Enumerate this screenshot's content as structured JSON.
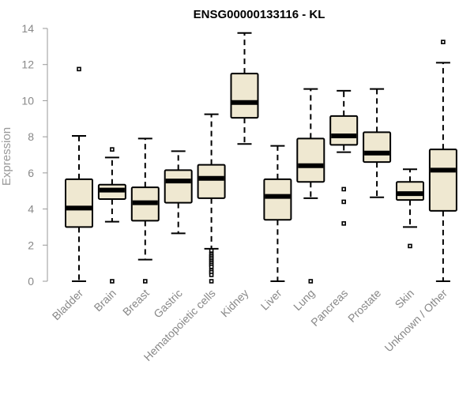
{
  "chart_data": {
    "type": "boxplot",
    "title": "ENSG00000133116 - KL",
    "xlabel": "",
    "ylabel": "Expression",
    "ylim": [
      0,
      14
    ],
    "yticks": [
      0,
      2,
      4,
      6,
      8,
      10,
      12,
      14
    ],
    "box_fill": "#efe8d1",
    "categories": [
      "Bladder",
      "Brain",
      "Breast",
      "Gastric",
      "Hematopoietic cells",
      "Kidney",
      "Liver",
      "Lung",
      "Pancreas",
      "Prostate",
      "Skin",
      "Unknown / Other"
    ],
    "boxes": [
      {
        "name": "Bladder",
        "whisker_low": 0.0,
        "q1": 3.0,
        "median": 4.05,
        "q3": 5.65,
        "whisker_high": 8.05,
        "outliers": [
          11.75
        ]
      },
      {
        "name": "Brain",
        "whisker_low": 3.3,
        "q1": 4.55,
        "median": 5.05,
        "q3": 5.35,
        "whisker_high": 6.85,
        "outliers": [
          7.3,
          0.0
        ]
      },
      {
        "name": "Breast",
        "whisker_low": 1.2,
        "q1": 3.35,
        "median": 4.35,
        "q3": 5.2,
        "whisker_high": 7.9,
        "outliers": [
          0.0
        ]
      },
      {
        "name": "Gastric",
        "whisker_low": 2.65,
        "q1": 4.35,
        "median": 5.55,
        "q3": 6.15,
        "whisker_high": 7.2,
        "outliers": []
      },
      {
        "name": "Hematopoietic cells",
        "whisker_low": 1.8,
        "q1": 4.6,
        "median": 5.7,
        "q3": 6.45,
        "whisker_high": 9.25,
        "outliers": [
          1.7,
          1.5,
          1.4,
          1.3,
          1.2,
          1.1,
          1.0,
          0.9,
          0.8,
          0.6,
          0.5,
          0.35,
          0.0
        ]
      },
      {
        "name": "Kidney",
        "whisker_low": 7.6,
        "q1": 9.05,
        "median": 9.9,
        "q3": 11.5,
        "whisker_high": 13.75,
        "outliers": []
      },
      {
        "name": "Liver",
        "whisker_low": 0.0,
        "q1": 3.4,
        "median": 4.7,
        "q3": 5.65,
        "whisker_high": 7.5,
        "outliers": []
      },
      {
        "name": "Lung",
        "whisker_low": 4.6,
        "q1": 5.5,
        "median": 6.4,
        "q3": 7.9,
        "whisker_high": 10.65,
        "outliers": [
          0.0
        ]
      },
      {
        "name": "Pancreas",
        "whisker_low": 7.15,
        "q1": 7.55,
        "median": 8.05,
        "q3": 9.15,
        "whisker_high": 10.55,
        "outliers": [
          5.1,
          4.4,
          3.2
        ]
      },
      {
        "name": "Prostate",
        "whisker_low": 4.65,
        "q1": 6.6,
        "median": 7.1,
        "q3": 8.25,
        "whisker_high": 10.65,
        "outliers": []
      },
      {
        "name": "Skin",
        "whisker_low": 3.0,
        "q1": 4.5,
        "median": 4.85,
        "q3": 5.5,
        "whisker_high": 6.2,
        "outliers": [
          1.95
        ]
      },
      {
        "name": "Unknown / Other",
        "whisker_low": 0.0,
        "q1": 3.9,
        "median": 6.15,
        "q3": 7.3,
        "whisker_high": 12.1,
        "outliers": [
          13.25
        ]
      }
    ]
  }
}
